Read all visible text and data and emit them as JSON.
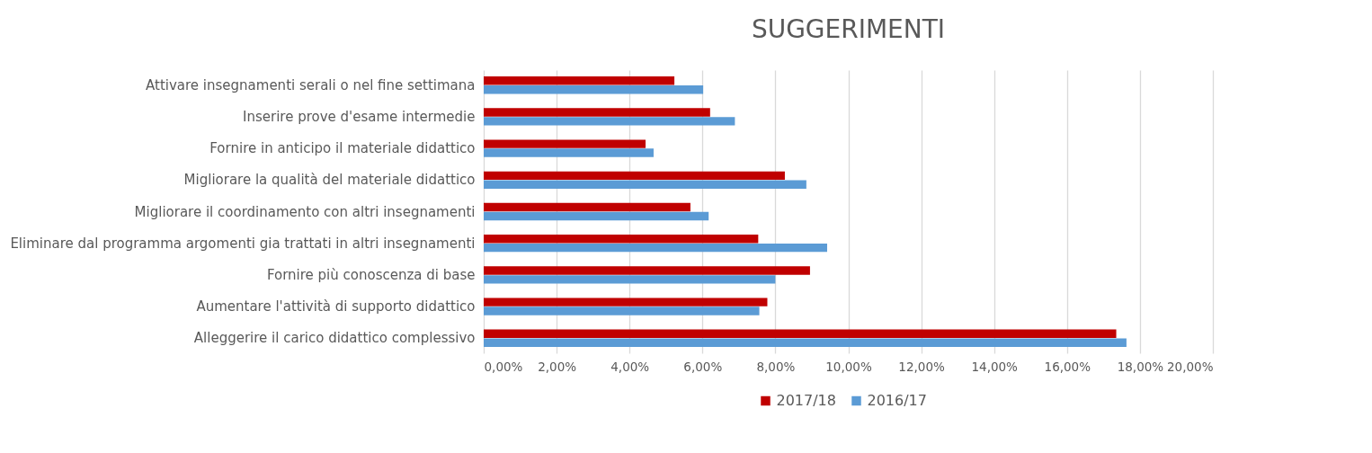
{
  "chart_data": {
    "type": "bar",
    "orientation": "horizontal",
    "title": "SUGGERIMENTI",
    "categories": [
      "Attivare insegnamenti serali o nel fine settimana",
      "Inserire prove d'esame intermedie",
      "Fornire in anticipo il materiale didattico",
      "Migliorare la qualità del materiale didattico",
      "Migliorare il coordinamento con altri insegnamenti",
      "Eliminare dal programma argomenti gia trattati in altri insegnamenti",
      "Fornire più conoscenza di base",
      "Aumentare l'attività di supporto didattico",
      "Alleggerire il carico didattico complessivo"
    ],
    "series": [
      {
        "name": "2017/18",
        "color": "#c00000",
        "values": [
          5.23,
          6.21,
          4.44,
          8.26,
          5.67,
          7.53,
          8.95,
          7.78,
          17.35
        ]
      },
      {
        "name": "2016/17",
        "color": "#5b9bd5",
        "values": [
          6.02,
          6.89,
          4.66,
          8.85,
          6.17,
          9.42,
          8.0,
          7.56,
          17.63
        ]
      }
    ],
    "xlim": [
      0,
      20
    ],
    "xticks": [
      {
        "value": 0,
        "label": "0,00%"
      },
      {
        "value": 2,
        "label": "2,00%"
      },
      {
        "value": 4,
        "label": "4,00%"
      },
      {
        "value": 6,
        "label": "6,00%"
      },
      {
        "value": 8,
        "label": "8,00%"
      },
      {
        "value": 10,
        "label": "10,00%"
      },
      {
        "value": 12,
        "label": "12,00%"
      },
      {
        "value": 14,
        "label": "14,00%"
      },
      {
        "value": 16,
        "label": "16,00%"
      },
      {
        "value": 18,
        "label": "18,00%"
      },
      {
        "value": 20,
        "label": "20,00%"
      }
    ],
    "grid": "x",
    "legend": "bottom"
  }
}
